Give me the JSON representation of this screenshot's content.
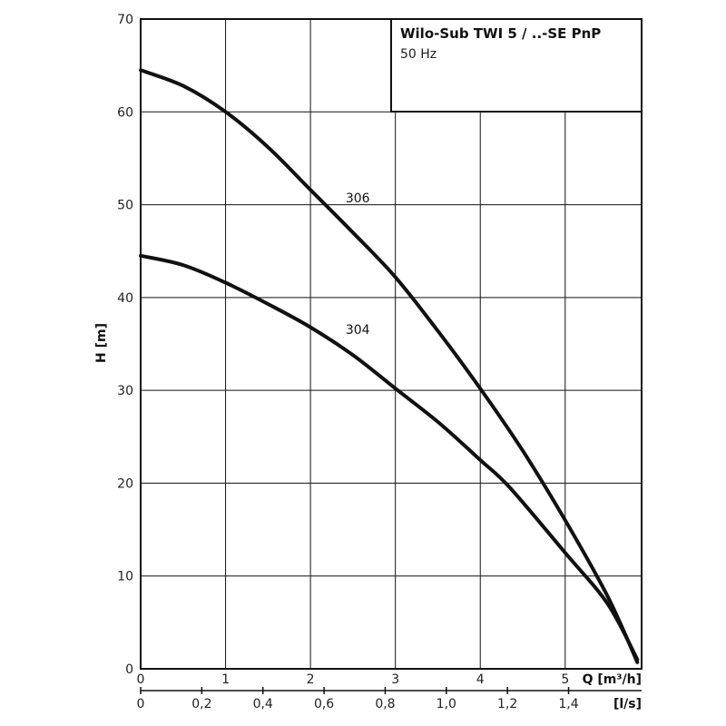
{
  "chart_data": {
    "type": "line",
    "title": "Wilo-Sub TWI 5 / ..-SE PnP",
    "subtitle": "50 Hz",
    "ylabel": "H [m]",
    "xlabel": "Q [m³/h]",
    "x2label": "[l/s]",
    "ylim": [
      0,
      70
    ],
    "xlim": [
      0,
      5.9
    ],
    "x2lim": [
      0,
      1.6389
    ],
    "grid": true,
    "y_ticks": [
      "0",
      "10",
      "20",
      "30",
      "40",
      "50",
      "60",
      "70"
    ],
    "x_ticks": [
      "0",
      "1",
      "2",
      "3",
      "4",
      "5"
    ],
    "x2_ticks": [
      "0",
      "0,2",
      "0,4",
      "0,6",
      "0,8",
      "1,0",
      "1,2",
      "1,4"
    ],
    "series": [
      {
        "name": "306",
        "x": [
          0,
          0.5,
          1,
          1.5,
          2,
          2.5,
          3,
          3.5,
          4,
          4.5,
          5,
          5.5,
          5.85
        ],
        "y": [
          64.5,
          62.8,
          60,
          56.2,
          51.6,
          47,
          42.2,
          36.4,
          30.2,
          23.5,
          16,
          7.8,
          0.7
        ]
      },
      {
        "name": "304",
        "x": [
          0,
          0.5,
          1,
          1.5,
          2,
          2.5,
          3,
          3.5,
          4,
          4.35,
          5,
          5.5,
          5.85
        ],
        "y": [
          44.5,
          43.5,
          41.6,
          39.3,
          36.8,
          33.8,
          30.2,
          26.6,
          22.5,
          19.5,
          12.5,
          7,
          1
        ]
      }
    ],
    "colors": {
      "curve": "#111111",
      "grid": "#111111"
    }
  }
}
